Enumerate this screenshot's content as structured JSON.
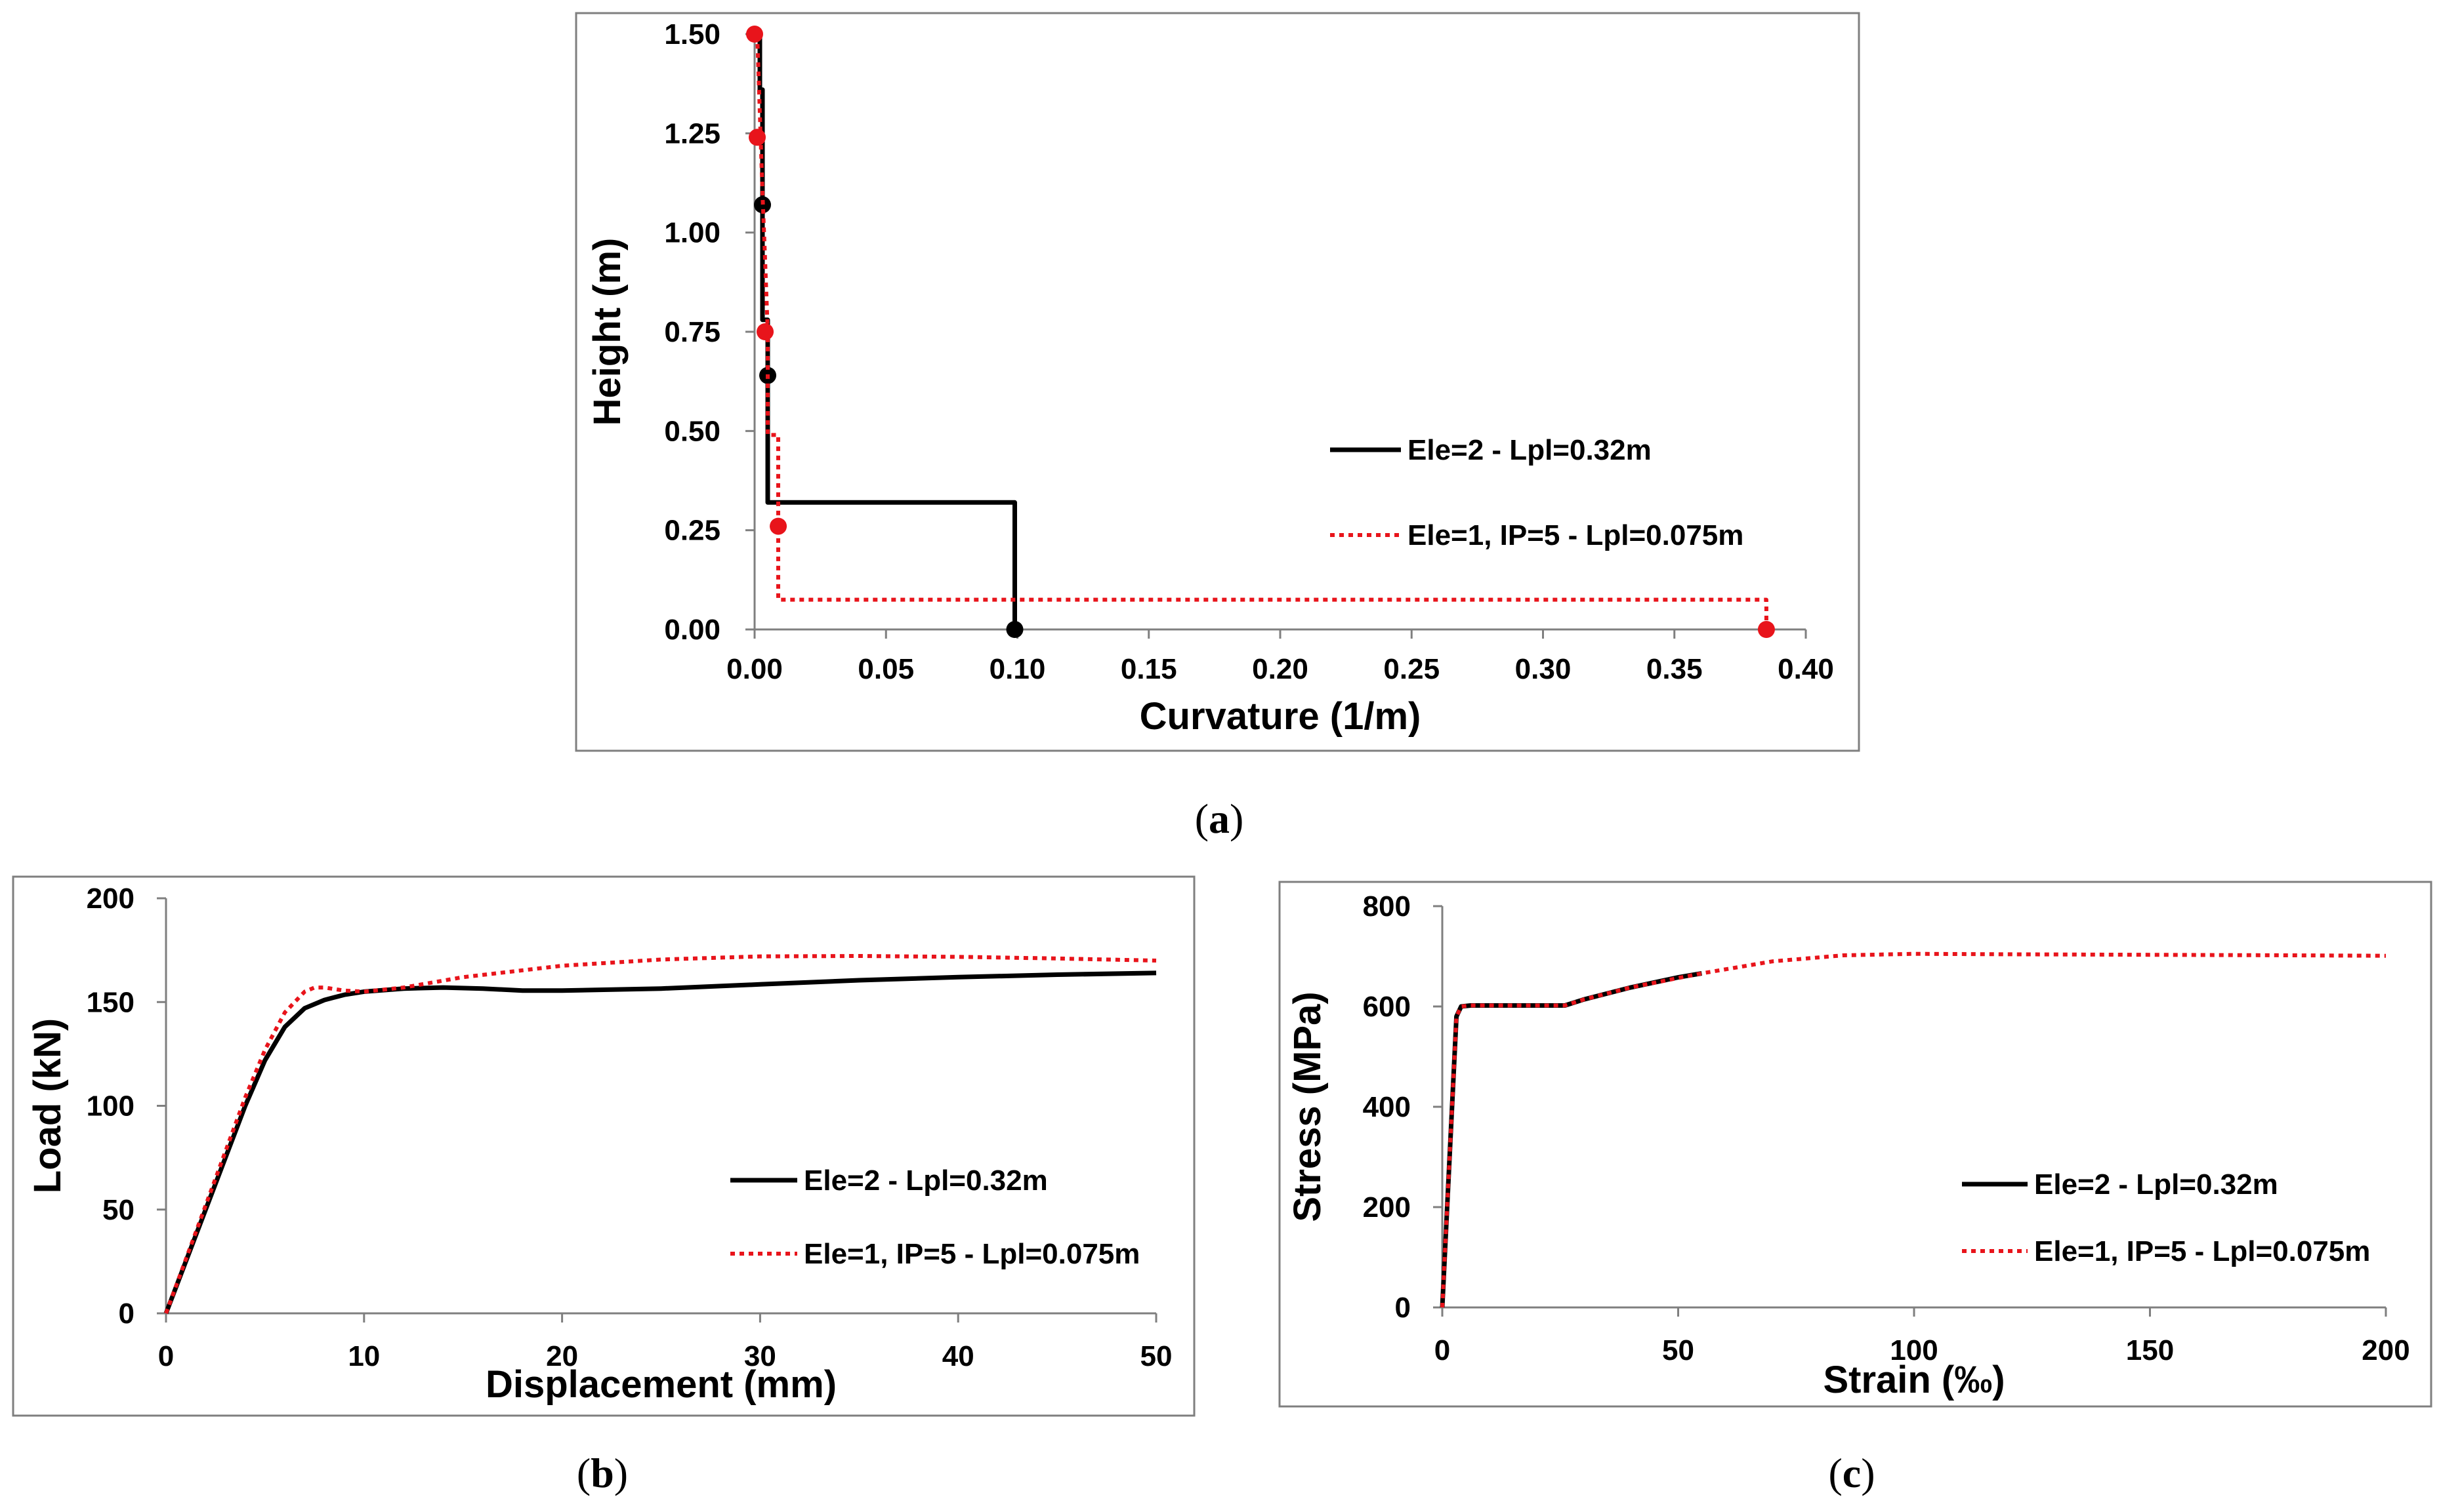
{
  "chart_data": [
    {
      "id": "a",
      "type": "line",
      "caption": "a",
      "xlabel": "Curvature (1/m)",
      "ylabel": "Height (m)",
      "xlim": [
        0,
        0.4
      ],
      "ylim": [
        0,
        1.5
      ],
      "xticks": [
        "0.00",
        "0.05",
        "0.10",
        "0.15",
        "0.20",
        "0.25",
        "0.30",
        "0.35",
        "0.40"
      ],
      "yticks": [
        "0.00",
        "0.25",
        "0.50",
        "0.75",
        "1.00",
        "1.25",
        "1.50"
      ],
      "legend_position": "center-right",
      "series": [
        {
          "name": "Ele=2 - Lpl=0.32m",
          "color": "#000000",
          "style": "solid",
          "x": [
            0.099,
            0.099,
            0.005,
            0.005,
            0.003,
            0.003,
            0.002,
            0.002
          ],
          "y": [
            0.0,
            0.32,
            0.32,
            0.78,
            0.78,
            1.36,
            1.36,
            1.5
          ],
          "points": {
            "x": [
              0.099,
              0.005,
              0.003
            ],
            "y": [
              0.0,
              0.64,
              1.07
            ]
          }
        },
        {
          "name": "Ele=1, IP=5 - Lpl=0.075m",
          "color": "#e8141b",
          "style": "dotted",
          "x": [
            0.385,
            0.385,
            0.009,
            0.009,
            0.005,
            0.005,
            0.004,
            0.003,
            0.002,
            0.001
          ],
          "y": [
            0.0,
            0.075,
            0.075,
            0.49,
            0.49,
            0.75,
            0.93,
            1.1,
            1.3,
            1.5
          ],
          "points": {
            "x": [
              0.385,
              0.009,
              0.004,
              0.001,
              0.0
            ],
            "y": [
              0.0,
              0.26,
              0.75,
              1.24,
              1.5
            ]
          }
        }
      ]
    },
    {
      "id": "b",
      "type": "line",
      "caption": "b",
      "xlabel": "Displacement (mm)",
      "ylabel": "Load (kN)",
      "xlim": [
        0,
        50
      ],
      "ylim": [
        0,
        200
      ],
      "xticks": [
        "0",
        "10",
        "20",
        "30",
        "40",
        "50"
      ],
      "yticks": [
        "0",
        "50",
        "100",
        "150",
        "200"
      ],
      "legend_position": "center-right",
      "series": [
        {
          "name": "Ele=2 - Lpl=0.32m",
          "color": "#000000",
          "style": "solid",
          "x": [
            0,
            2,
            4,
            5,
            6,
            7,
            8,
            9,
            10,
            12,
            14,
            16,
            18,
            20,
            25,
            30,
            35,
            40,
            45,
            50
          ],
          "y": [
            0,
            50,
            100,
            122,
            138,
            147,
            151,
            153.5,
            155,
            156.5,
            157,
            156.5,
            155.5,
            155.5,
            156.5,
            158.5,
            160.5,
            162,
            163.2,
            164
          ]
        },
        {
          "name": "Ele=1, IP=5 - Lpl=0.075m",
          "color": "#e8141b",
          "style": "dotted",
          "x": [
            0,
            2,
            4,
            5,
            6,
            7,
            7.5,
            8,
            9,
            10,
            12,
            15,
            20,
            25,
            30,
            35,
            40,
            45,
            50
          ],
          "y": [
            0,
            52,
            104,
            127,
            145,
            155,
            157,
            157,
            155.5,
            155,
            157,
            162,
            167.5,
            170.5,
            172,
            172.2,
            171.8,
            171,
            170
          ]
        }
      ]
    },
    {
      "id": "c",
      "type": "line",
      "caption": "c",
      "xlabel": "Strain (‰)",
      "ylabel": "Stress (MPa)",
      "xlim": [
        0,
        200
      ],
      "ylim": [
        0,
        800
      ],
      "xticks": [
        "0",
        "50",
        "100",
        "150",
        "200"
      ],
      "yticks": [
        "0",
        "200",
        "400",
        "600",
        "800"
      ],
      "legend_position": "center-right",
      "series": [
        {
          "name": "Ele=2 - Lpl=0.32m",
          "color": "#000000",
          "style": "solid",
          "x": [
            0,
            3,
            4,
            6,
            26,
            30,
            40,
            50,
            55
          ],
          "y": [
            0,
            580,
            600,
            602,
            602,
            614,
            638,
            658,
            666
          ]
        },
        {
          "name": "Ele=1, IP=5 - Lpl=0.075m",
          "color": "#e8141b",
          "style": "dotted",
          "x": [
            0,
            3,
            4,
            6,
            26,
            30,
            40,
            55,
            70,
            85,
            100,
            120,
            150,
            180,
            200
          ],
          "y": [
            0,
            580,
            600,
            602,
            602,
            614,
            638,
            666,
            690,
            702,
            705,
            704,
            703,
            702,
            701
          ]
        }
      ]
    }
  ]
}
